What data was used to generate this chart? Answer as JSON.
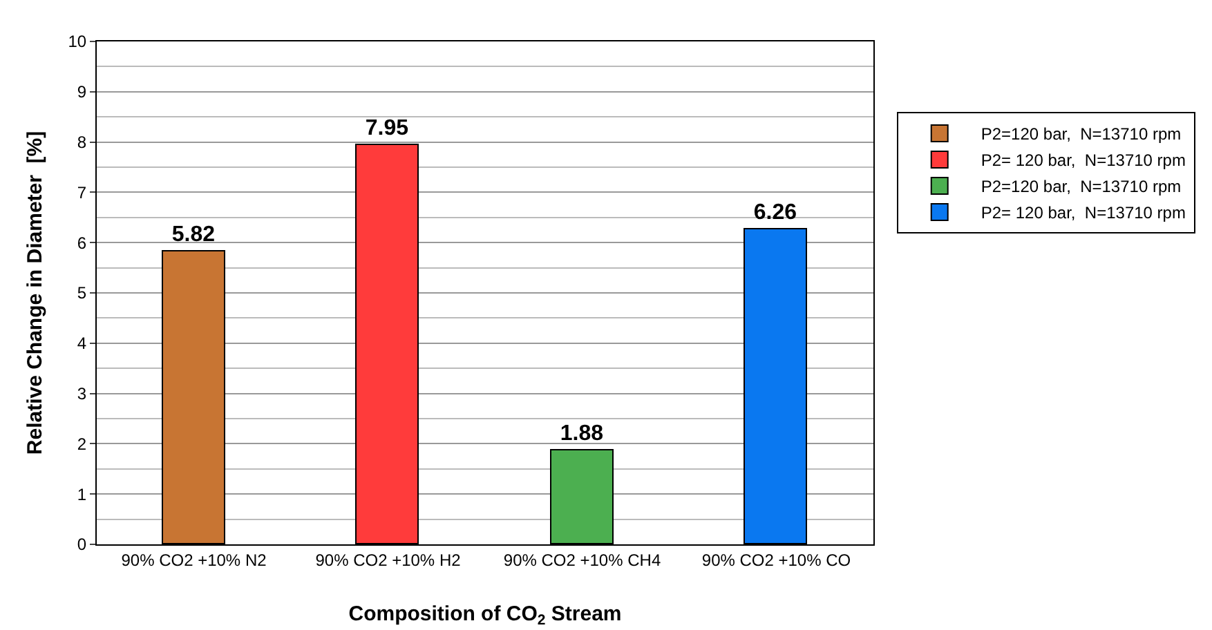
{
  "chart_data": {
    "type": "bar",
    "xlabel": "Composition of CO$_{2}$ Stream",
    "ylabel": "Relative Change in Diameter  [%]",
    "categories": [
      "90% CO2 +10% N2",
      "90% CO2 +10% H2",
      "90% CO2 +10% CH4",
      "90% CO2 +10% CO"
    ],
    "series": [
      {
        "name": "P2=120 bar,  N=13710 rpm",
        "color": "#c87533",
        "values": [
          5.82,
          null,
          null,
          null
        ]
      },
      {
        "name": "P2= 120 bar,  N=13710 rpm",
        "color": "#ff3b3b",
        "values": [
          null,
          7.95,
          null,
          null
        ]
      },
      {
        "name": "P2=120 bar,  N=13710 rpm",
        "color": "#4caf50",
        "values": [
          null,
          null,
          1.88,
          null
        ]
      },
      {
        "name": "P2= 120 bar,  N=13710 rpm",
        "color": "#0a78f0",
        "values": [
          null,
          null,
          null,
          6.26
        ]
      }
    ],
    "ylim": [
      0,
      10
    ],
    "yticks": [
      0,
      1,
      2,
      3,
      4,
      5,
      6,
      7,
      8,
      9,
      10
    ],
    "grid": "y",
    "legend": "right",
    "data_labels": true
  }
}
